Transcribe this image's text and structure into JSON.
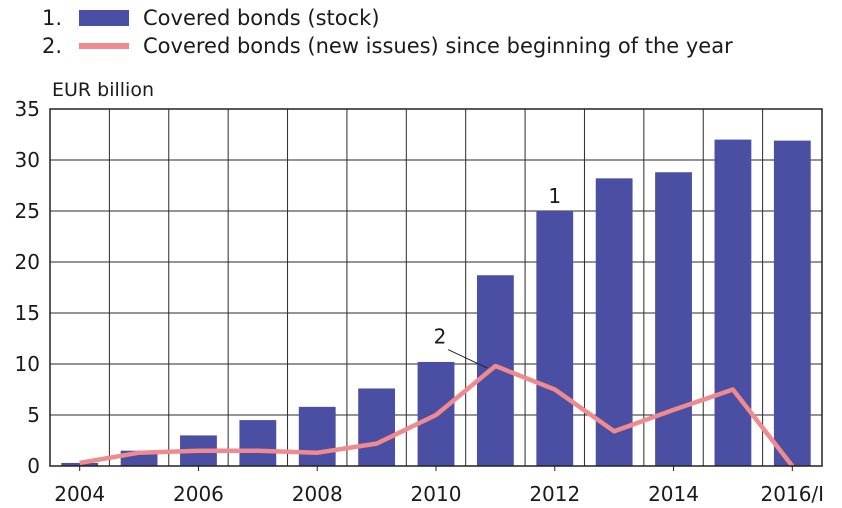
{
  "chart_data": {
    "type": "bar",
    "unit_label": "EUR billion",
    "x_tick_labels": [
      "2004",
      "2006",
      "2008",
      "2010",
      "2012",
      "2014",
      "2016/I"
    ],
    "categories": [
      "2004",
      "2005",
      "2006",
      "2007",
      "2008",
      "2009",
      "2010",
      "2011",
      "2012",
      "2013",
      "2014",
      "2015",
      "2016/I"
    ],
    "y_ticks": [
      0,
      5,
      10,
      15,
      20,
      25,
      30,
      35
    ],
    "ylim": [
      0,
      35
    ],
    "grid": true,
    "legend_position": "top-left",
    "series": [
      {
        "marker": "1.",
        "name": "Covered bonds (stock)",
        "kind": "bar",
        "color": "#4b4fa3",
        "annotation": "1",
        "annotation_category": "2012",
        "values": [
          0.3,
          1.5,
          3.0,
          4.5,
          5.8,
          7.6,
          10.2,
          18.7,
          25.0,
          28.2,
          28.8,
          32.0,
          31.9
        ]
      },
      {
        "marker": "2.",
        "name": "Covered bonds (new issues) since beginning of the year",
        "kind": "line",
        "color": "#ef8a8e",
        "annotation": "2",
        "annotation_category": "2010",
        "values": [
          0.3,
          1.3,
          1.5,
          1.5,
          1.3,
          2.2,
          5.0,
          9.8,
          7.5,
          3.4,
          5.5,
          7.5,
          0.0
        ]
      }
    ]
  }
}
